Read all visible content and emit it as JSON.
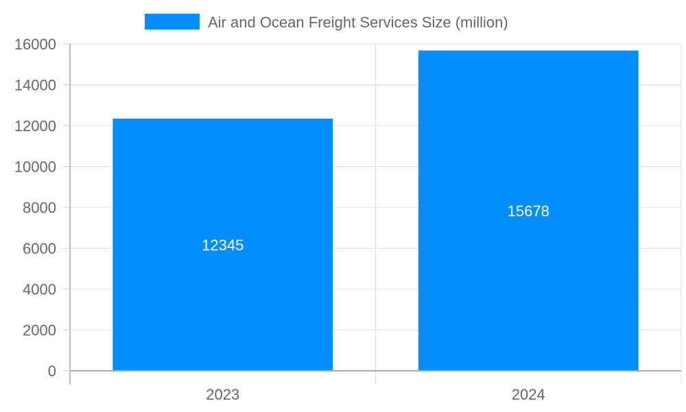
{
  "chart_data": {
    "type": "bar",
    "categories": [
      "2023",
      "2024"
    ],
    "series": [
      {
        "name": "Air and Ocean Freight Services Size (million)",
        "values": [
          12345,
          15678
        ],
        "color": "#038dfd"
      }
    ],
    "data_labels": [
      "12345",
      "15678"
    ],
    "ylim": [
      0,
      16000
    ],
    "yticks": [
      0,
      2000,
      4000,
      6000,
      8000,
      10000,
      12000,
      14000,
      16000
    ],
    "grid": true,
    "legend": "top-center"
  }
}
